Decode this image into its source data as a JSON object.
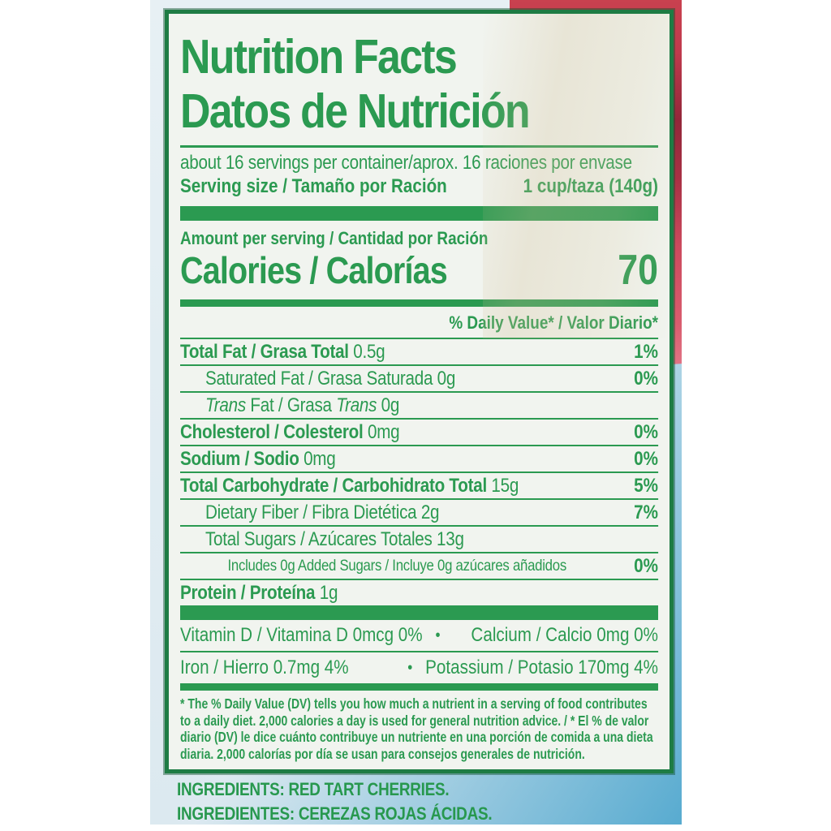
{
  "label": {
    "title_en": "Nutrition Facts",
    "title_es": "Datos de Nutrición",
    "servings_line": "about 16 servings per container/aprox. 16 raciones por envase",
    "serving_size_label": "Serving size / Tamaño por Ración",
    "serving_size_value": "1 cup/taza (140g)",
    "amount_per_serving": "Amount per serving / Cantidad por Ración",
    "calories_label": "Calories / Calorías",
    "calories_value": "70",
    "daily_value_header": "% Daily Value* / Valor Diario*",
    "rows": [
      {
        "indent": 0,
        "parts": [
          {
            "t": "Total Fat / Grasa Total",
            "b": 1
          },
          {
            "t": " 0.5g"
          }
        ],
        "dv": "1%"
      },
      {
        "indent": 1,
        "parts": [
          {
            "t": "Saturated Fat / Grasa Saturada 0g"
          }
        ],
        "dv": "0%"
      },
      {
        "indent": 1,
        "parts": [
          {
            "t": "Trans",
            "i": 1
          },
          {
            "t": " Fat / Grasa "
          },
          {
            "t": "Trans",
            "i": 1
          },
          {
            "t": " 0g"
          }
        ],
        "dv": ""
      },
      {
        "indent": 0,
        "parts": [
          {
            "t": "Cholesterol / Colesterol",
            "b": 1
          },
          {
            "t": " 0mg"
          }
        ],
        "dv": "0%"
      },
      {
        "indent": 0,
        "parts": [
          {
            "t": "Sodium / Sodio",
            "b": 1
          },
          {
            "t": " 0mg"
          }
        ],
        "dv": "0%"
      },
      {
        "indent": 0,
        "parts": [
          {
            "t": "Total Carbohydrate / Carbohidrato Total",
            "b": 1
          },
          {
            "t": " 15g"
          }
        ],
        "dv": "5%"
      },
      {
        "indent": 1,
        "parts": [
          {
            "t": "Dietary Fiber / Fibra Dietética 2g"
          }
        ],
        "dv": "7%"
      },
      {
        "indent": 1,
        "parts": [
          {
            "t": "Total Sugars / Azúcares Totales 13g"
          }
        ],
        "dv": ""
      },
      {
        "indent": 2,
        "small": 1,
        "parts": [
          {
            "t": "Includes 0g Added Sugars / Incluye 0g azúcares añadidos"
          }
        ],
        "dv": "0%"
      },
      {
        "indent": 0,
        "parts": [
          {
            "t": "Protein / Proteína",
            "b": 1
          },
          {
            "t": " 1g"
          }
        ],
        "dv": ""
      }
    ],
    "micronutrients": [
      {
        "left": "Vitamin D / Vitamina D 0mcg 0%",
        "separator": "•",
        "right": "Calcium / Calcio 0mg 0%"
      },
      {
        "left": "Iron / Hierro 0.7mg 4%",
        "separator": "•",
        "right": "Potassium / Potasio 170mg 4%"
      }
    ],
    "footnote": "* The % Daily Value (DV) tells you how much a nutrient in a serving of food contributes to a daily diet. 2,000 calories a day is used for general nutrition advice. / * El % de valor diario (DV) le dice cuánto contribuye un nutriente en una porción de comida a una dieta diaria. 2,000 calorías por día se usan para consejos generales de nutrición.",
    "colors": {
      "green_text": "#2B9A51",
      "green_border": "#1E7C44",
      "label_background": "#F1F4EF",
      "package_blue": "#58ABD0",
      "package_red": "#C9414F"
    }
  },
  "package": {
    "ingredients_en": "INGREDIENTS: RED TART CHERRIES.",
    "ingredients_es": "INGREDIENTES: CEREZAS ROJAS ÁCIDAS."
  }
}
